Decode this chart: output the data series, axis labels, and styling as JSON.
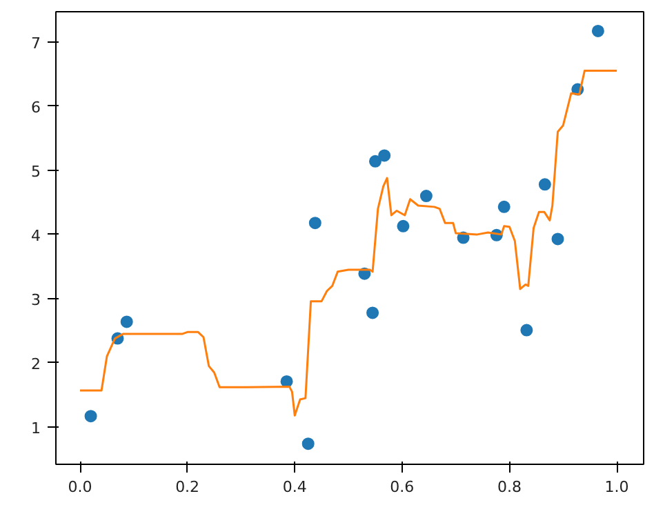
{
  "chart_data": {
    "type": "scatter",
    "xlim": [
      -0.045,
      1.05
    ],
    "ylim": [
      0.42,
      7.47
    ],
    "xticks": [
      {
        "value": 0,
        "label": "0.0"
      },
      {
        "value": 0.2,
        "label": "0.2"
      },
      {
        "value": 0.4,
        "label": "0.4"
      },
      {
        "value": 0.6,
        "label": "0.6"
      },
      {
        "value": 0.8,
        "label": "0.8"
      },
      {
        "value": 1,
        "label": "1.0"
      }
    ],
    "yticks": [
      1,
      2,
      3,
      4,
      5,
      6,
      7
    ],
    "grid": false,
    "series": [
      {
        "color": "#1f77b4",
        "marker": "circle",
        "x": [
          0.02,
          0.07,
          0.087,
          0.385,
          0.425,
          0.438,
          0.53,
          0.545,
          0.55,
          0.567,
          0.602,
          0.645,
          0.714,
          0.776,
          0.79,
          0.832,
          0.866,
          0.89,
          0.927,
          0.965
        ],
        "values": [
          1.17,
          2.38,
          2.64,
          1.71,
          0.74,
          4.18,
          3.39,
          2.78,
          5.14,
          5.23,
          4.13,
          4.6,
          3.95,
          3.99,
          4.43,
          2.51,
          4.78,
          3.93,
          6.26,
          7.17
        ]
      },
      {
        "type": "line",
        "color": "#ff7f0e",
        "marker": "none",
        "line_style": "solid",
        "x": [
          0,
          0.04,
          0.05,
          0.065,
          0.08,
          0.19,
          0.2,
          0.22,
          0.23,
          0.24,
          0.25,
          0.26,
          0.31,
          0.39,
          0.395,
          0.4,
          0.41,
          0.42,
          0.43,
          0.45,
          0.46,
          0.47,
          0.48,
          0.5,
          0.54,
          0.545,
          0.555,
          0.565,
          0.572,
          0.58,
          0.59,
          0.605,
          0.615,
          0.63,
          0.66,
          0.67,
          0.68,
          0.695,
          0.7,
          0.74,
          0.76,
          0.785,
          0.79,
          0.8,
          0.81,
          0.82,
          0.83,
          0.835,
          0.845,
          0.855,
          0.865,
          0.875,
          0.88,
          0.89,
          0.9,
          0.915,
          0.93,
          0.94,
          1.0
        ],
        "values": [
          1.57,
          1.57,
          2.1,
          2.38,
          2.45,
          2.45,
          2.48,
          2.48,
          2.4,
          1.95,
          1.85,
          1.62,
          1.62,
          1.63,
          1.55,
          1.18,
          1.43,
          1.45,
          2.96,
          2.96,
          3.12,
          3.2,
          3.42,
          3.45,
          3.45,
          3.42,
          4.4,
          4.75,
          4.88,
          4.3,
          4.37,
          4.3,
          4.55,
          4.45,
          4.43,
          4.4,
          4.18,
          4.18,
          4.02,
          4.0,
          4.03,
          4.0,
          4.13,
          4.12,
          3.9,
          3.15,
          3.22,
          3.2,
          4.1,
          4.35,
          4.35,
          4.22,
          4.45,
          5.6,
          5.7,
          6.2,
          6.18,
          6.55,
          6.55
        ]
      }
    ]
  }
}
